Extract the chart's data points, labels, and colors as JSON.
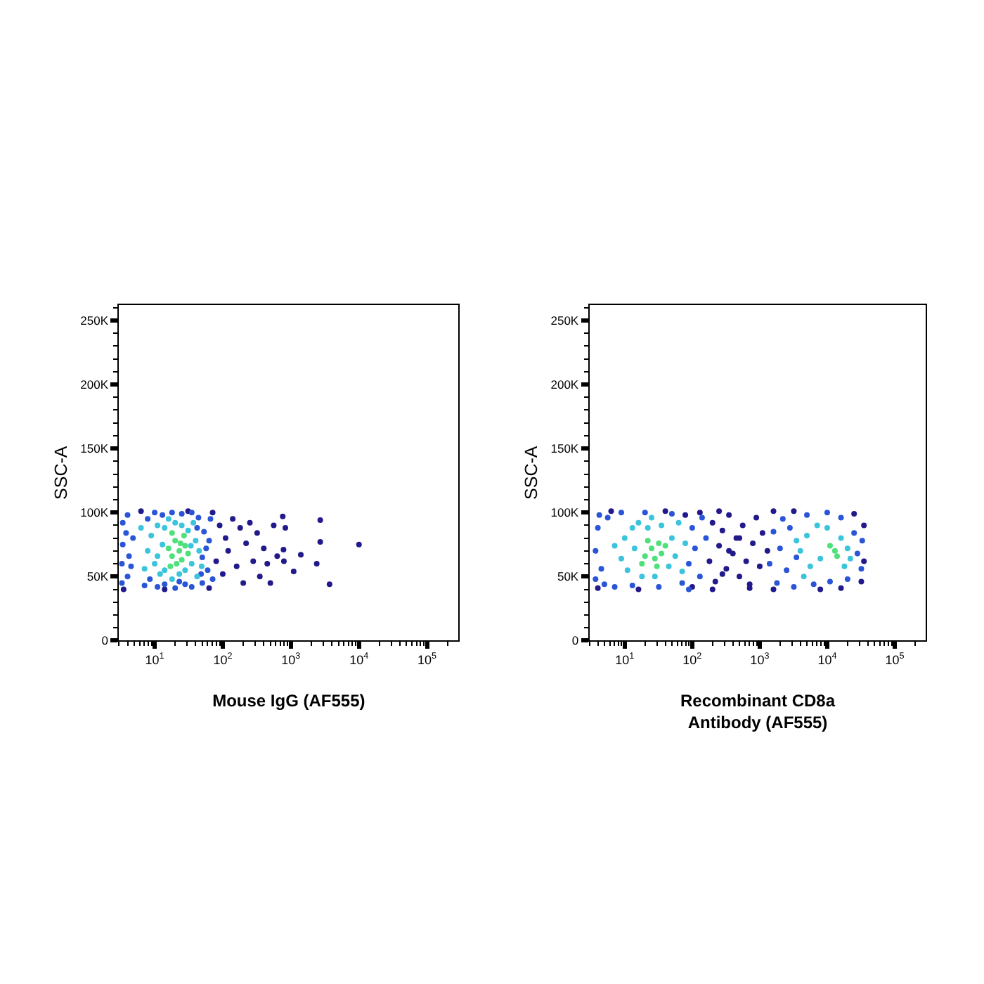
{
  "chart_data": [
    {
      "type": "scatter",
      "xlabel": "Mouse IgG (AF555)",
      "ylabel": "SSC-A",
      "log": "x",
      "marker": "circle",
      "xlim": [
        3,
        290000
      ],
      "ylim": [
        0,
        262000
      ],
      "xticks": [
        {
          "value": 3,
          "label": null
        },
        {
          "value": 4,
          "label": null
        },
        {
          "value": 5,
          "label": null
        },
        {
          "value": 6,
          "label": null
        },
        {
          "value": 7,
          "label": null
        },
        {
          "value": 8,
          "label": null
        },
        {
          "value": 9,
          "label": null
        },
        {
          "value": 10,
          "label": "10$^{1}$"
        },
        {
          "value": 20,
          "label": null
        },
        {
          "value": 30,
          "label": null
        },
        {
          "value": 40,
          "label": null
        },
        {
          "value": 50,
          "label": null
        },
        {
          "value": 60,
          "label": null
        },
        {
          "value": 70,
          "label": null
        },
        {
          "value": 80,
          "label": null
        },
        {
          "value": 90,
          "label": null
        },
        {
          "value": 100,
          "label": "10$^{2}$"
        },
        {
          "value": 200,
          "label": null
        },
        {
          "value": 300,
          "label": null
        },
        {
          "value": 400,
          "label": null
        },
        {
          "value": 500,
          "label": null
        },
        {
          "value": 600,
          "label": null
        },
        {
          "value": 700,
          "label": null
        },
        {
          "value": 800,
          "label": null
        },
        {
          "value": 900,
          "label": null
        },
        {
          "value": 1000,
          "label": "10$^{3}$"
        },
        {
          "value": 2000,
          "label": null
        },
        {
          "value": 3000,
          "label": null
        },
        {
          "value": 4000,
          "label": null
        },
        {
          "value": 5000,
          "label": null
        },
        {
          "value": 6000,
          "label": null
        },
        {
          "value": 7000,
          "label": null
        },
        {
          "value": 8000,
          "label": null
        },
        {
          "value": 9000,
          "label": null
        },
        {
          "value": 10000,
          "label": "10$^{4}$"
        },
        {
          "value": 20000,
          "label": null
        },
        {
          "value": 30000,
          "label": null
        },
        {
          "value": 40000,
          "label": null
        },
        {
          "value": 50000,
          "label": null
        },
        {
          "value": 60000,
          "label": null
        },
        {
          "value": 70000,
          "label": null
        },
        {
          "value": 80000,
          "label": null
        },
        {
          "value": 90000,
          "label": null
        },
        {
          "value": 100000,
          "label": "10$^{5}$"
        },
        {
          "value": 200000,
          "label": null
        }
      ],
      "yticks": [
        0,
        {
          "value": 10000,
          "label": null
        },
        {
          "value": 20000,
          "label": null
        },
        {
          "value": 30000,
          "label": null
        },
        {
          "value": 40000,
          "label": null
        },
        {
          "value": 50000,
          "label": "50K"
        },
        {
          "value": 60000,
          "label": null
        },
        {
          "value": 70000,
          "label": null
        },
        {
          "value": 80000,
          "label": null
        },
        {
          "value": 90000,
          "label": null
        },
        {
          "value": 100000,
          "label": "100K"
        },
        {
          "value": 110000,
          "label": null
        },
        {
          "value": 120000,
          "label": null
        },
        {
          "value": 130000,
          "label": null
        },
        {
          "value": 140000,
          "label": null
        },
        {
          "value": 150000,
          "label": "150K"
        },
        {
          "value": 160000,
          "label": null
        },
        {
          "value": 170000,
          "label": null
        },
        {
          "value": 180000,
          "label": null
        },
        {
          "value": 190000,
          "label": null
        },
        {
          "value": 200000,
          "label": "200K"
        },
        {
          "value": 210000,
          "label": null
        },
        {
          "value": 220000,
          "label": null
        },
        {
          "value": 230000,
          "label": null
        },
        {
          "value": 240000,
          "label": null
        },
        {
          "value": 250000,
          "label": "250K"
        },
        {
          "value": 260000,
          "label": null
        }
      ],
      "series": [
        {
          "color": "#221a8a",
          "x": [
            3.5,
            6.3,
            14,
            31,
            63,
            71,
            80,
            90,
            100,
            110,
            120,
            140,
            160,
            180,
            200,
            220,
            250,
            280,
            320,
            350,
            400,
            450,
            500,
            560,
            630,
            760,
            830,
            780,
            790,
            1100,
            1400,
            2700,
            2700,
            2400,
            3700,
            10000
          ],
          "values": [
            40000,
            101000,
            40000,
            101000,
            41000,
            100000,
            62000,
            90000,
            52000,
            80000,
            70000,
            95000,
            58000,
            88000,
            45000,
            76000,
            92000,
            62000,
            84000,
            50000,
            72000,
            60000,
            45000,
            90000,
            66000,
            97000,
            88000,
            71000,
            62000,
            54000,
            67000,
            94000,
            77000,
            60000,
            44000,
            75000
          ]
        },
        {
          "color": "#2a55d6",
          "x": [
            3.3,
            3.3,
            3.4,
            3.4,
            4,
            4,
            4.2,
            4.8,
            7.1,
            7.9,
            8.5,
            10,
            11,
            13,
            14,
            18,
            20,
            25,
            28,
            35,
            35,
            44,
            50,
            50,
            53,
            60,
            63,
            66,
            71,
            3.8,
            57,
            42,
            4.5,
            48,
            23
          ],
          "values": [
            45000,
            60000,
            75000,
            92000,
            50000,
            98000,
            66000,
            80000,
            43000,
            95000,
            48000,
            100000,
            42000,
            98000,
            44000,
            100000,
            41000,
            99000,
            44000,
            100000,
            42000,
            96000,
            45000,
            65000,
            85000,
            55000,
            78000,
            95000,
            48000,
            84000,
            72000,
            88000,
            58000,
            52000,
            46000
          ]
        },
        {
          "color": "#3cc4dc",
          "x": [
            7.9,
            8.9,
            10,
            11,
            12,
            13,
            14,
            14,
            16,
            18,
            20,
            23,
            25,
            28,
            31,
            35,
            40,
            45,
            37,
            49,
            7.1,
            6.3,
            42,
            11,
            34
          ],
          "values": [
            70000,
            82000,
            60000,
            90000,
            52000,
            75000,
            88000,
            55000,
            95000,
            48000,
            92000,
            52000,
            90000,
            55000,
            86000,
            60000,
            78000,
            70000,
            92000,
            58000,
            56000,
            88000,
            50000,
            66000,
            74000
          ]
        },
        {
          "color": "#4ee07a",
          "x": [
            16,
            18,
            20,
            23,
            25,
            28,
            21,
            18,
            31,
            24,
            17,
            27
          ],
          "values": [
            72000,
            66000,
            78000,
            70000,
            63000,
            74000,
            60000,
            84000,
            68000,
            76000,
            58000,
            82000
          ]
        }
      ]
    },
    {
      "type": "scatter",
      "xlabel": "Recombinant CD8a\nAntibody (AF555)",
      "ylabel": "SSC-A",
      "log": "x",
      "marker": "circle",
      "xlim": [
        3,
        290000
      ],
      "ylim": [
        0,
        262000
      ],
      "xticks": [
        {
          "value": 3,
          "label": null
        },
        {
          "value": 4,
          "label": null
        },
        {
          "value": 5,
          "label": null
        },
        {
          "value": 6,
          "label": null
        },
        {
          "value": 7,
          "label": null
        },
        {
          "value": 8,
          "label": null
        },
        {
          "value": 9,
          "label": null
        },
        {
          "value": 10,
          "label": "10$^{1}$"
        },
        {
          "value": 20,
          "label": null
        },
        {
          "value": 30,
          "label": null
        },
        {
          "value": 40,
          "label": null
        },
        {
          "value": 50,
          "label": null
        },
        {
          "value": 60,
          "label": null
        },
        {
          "value": 70,
          "label": null
        },
        {
          "value": 80,
          "label": null
        },
        {
          "value": 90,
          "label": null
        },
        {
          "value": 100,
          "label": "10$^{2}$"
        },
        {
          "value": 200,
          "label": null
        },
        {
          "value": 300,
          "label": null
        },
        {
          "value": 400,
          "label": null
        },
        {
          "value": 500,
          "label": null
        },
        {
          "value": 600,
          "label": null
        },
        {
          "value": 700,
          "label": null
        },
        {
          "value": 800,
          "label": null
        },
        {
          "value": 900,
          "label": null
        },
        {
          "value": 1000,
          "label": "10$^{3}$"
        },
        {
          "value": 2000,
          "label": null
        },
        {
          "value": 3000,
          "label": null
        },
        {
          "value": 4000,
          "label": null
        },
        {
          "value": 5000,
          "label": null
        },
        {
          "value": 6000,
          "label": null
        },
        {
          "value": 7000,
          "label": null
        },
        {
          "value": 8000,
          "label": null
        },
        {
          "value": 9000,
          "label": null
        },
        {
          "value": 10000,
          "label": "10$^{4}$"
        },
        {
          "value": 20000,
          "label": null
        },
        {
          "value": 30000,
          "label": null
        },
        {
          "value": 40000,
          "label": null
        },
        {
          "value": 50000,
          "label": null
        },
        {
          "value": 60000,
          "label": null
        },
        {
          "value": 70000,
          "label": null
        },
        {
          "value": 80000,
          "label": null
        },
        {
          "value": 90000,
          "label": null
        },
        {
          "value": 100000,
          "label": "10$^{5}$"
        },
        {
          "value": 200000,
          "label": null
        }
      ],
      "yticks": [
        0,
        {
          "value": 10000,
          "label": null
        },
        {
          "value": 20000,
          "label": null
        },
        {
          "value": 30000,
          "label": null
        },
        {
          "value": 40000,
          "label": null
        },
        {
          "value": 50000,
          "label": "50K"
        },
        {
          "value": 60000,
          "label": null
        },
        {
          "value": 70000,
          "label": null
        },
        {
          "value": 80000,
          "label": null
        },
        {
          "value": 90000,
          "label": null
        },
        {
          "value": 100000,
          "label": "100K"
        },
        {
          "value": 110000,
          "label": null
        },
        {
          "value": 120000,
          "label": null
        },
        {
          "value": 130000,
          "label": null
        },
        {
          "value": 140000,
          "label": null
        },
        {
          "value": 150000,
          "label": "150K"
        },
        {
          "value": 160000,
          "label": null
        },
        {
          "value": 170000,
          "label": null
        },
        {
          "value": 180000,
          "label": null
        },
        {
          "value": 190000,
          "label": null
        },
        {
          "value": 200000,
          "label": "200K"
        },
        {
          "value": 210000,
          "label": null
        },
        {
          "value": 220000,
          "label": null
        },
        {
          "value": 230000,
          "label": null
        },
        {
          "value": 240000,
          "label": null
        },
        {
          "value": 250000,
          "label": "250K"
        },
        {
          "value": 260000,
          "label": null
        }
      ],
      "series": [
        {
          "color": "#221a8a",
          "x": [
            180,
            200,
            220,
            250,
            280,
            320,
            350,
            400,
            450,
            500,
            560,
            630,
            710,
            790,
            890,
            1000,
            1100,
            1300,
            250,
            4,
            6.3,
            16,
            40,
            100,
            130,
            1600,
            3200,
            7900,
            16000,
            25000,
            35000,
            35000,
            32000,
            200,
            710,
            79,
            1600,
            350,
            500,
            280
          ],
          "values": [
            62000,
            92000,
            46000,
            74000,
            86000,
            56000,
            98000,
            68000,
            80000,
            50000,
            90000,
            62000,
            44000,
            76000,
            96000,
            58000,
            84000,
            70000,
            101000,
            41000,
            101000,
            40000,
            101000,
            42000,
            100000,
            101000,
            101000,
            40000,
            41000,
            99000,
            62000,
            90000,
            46000,
            40000,
            41000,
            98000,
            40000,
            70000,
            80000,
            52000
          ]
        },
        {
          "color": "#2a55d6",
          "x": [
            3.7,
            3.7,
            4,
            4.2,
            4.5,
            5,
            5.6,
            7.1,
            8.9,
            13,
            20,
            32,
            50,
            71,
            89,
            100,
            110,
            130,
            140,
            160,
            1400,
            1600,
            1800,
            2000,
            2200,
            2500,
            2800,
            3200,
            3500,
            5000,
            6300,
            10000,
            11000,
            16000,
            20000,
            25000,
            28000,
            32000,
            33000,
            89
          ],
          "values": [
            48000,
            70000,
            88000,
            98000,
            56000,
            44000,
            96000,
            42000,
            100000,
            43000,
            100000,
            42000,
            99000,
            45000,
            60000,
            88000,
            72000,
            50000,
            96000,
            80000,
            60000,
            85000,
            45000,
            72000,
            95000,
            55000,
            88000,
            42000,
            65000,
            98000,
            44000,
            100000,
            46000,
            96000,
            48000,
            84000,
            68000,
            56000,
            78000,
            40000
          ]
        },
        {
          "color": "#3cc4dc",
          "x": [
            8.9,
            10,
            11,
            13,
            14,
            16,
            18,
            22,
            28,
            35,
            45,
            50,
            56,
            63,
            71,
            7.1,
            79,
            25,
            4000,
            5000,
            5600,
            7100,
            7900,
            16000,
            18000,
            20000,
            4500,
            10000,
            22000,
            3500
          ],
          "values": [
            64000,
            80000,
            55000,
            88000,
            72000,
            92000,
            50000,
            88000,
            50000,
            90000,
            58000,
            80000,
            66000,
            92000,
            54000,
            74000,
            76000,
            96000,
            70000,
            82000,
            58000,
            90000,
            64000,
            80000,
            58000,
            72000,
            50000,
            88000,
            64000,
            78000
          ]
        },
        {
          "color": "#4ee07a",
          "x": [
            20,
            25,
            28,
            32,
            22,
            35,
            18,
            40,
            30,
            13000,
            14000,
            11000
          ],
          "values": [
            66000,
            72000,
            64000,
            76000,
            78000,
            68000,
            60000,
            74000,
            58000,
            70000,
            66000,
            74000
          ]
        }
      ]
    }
  ]
}
